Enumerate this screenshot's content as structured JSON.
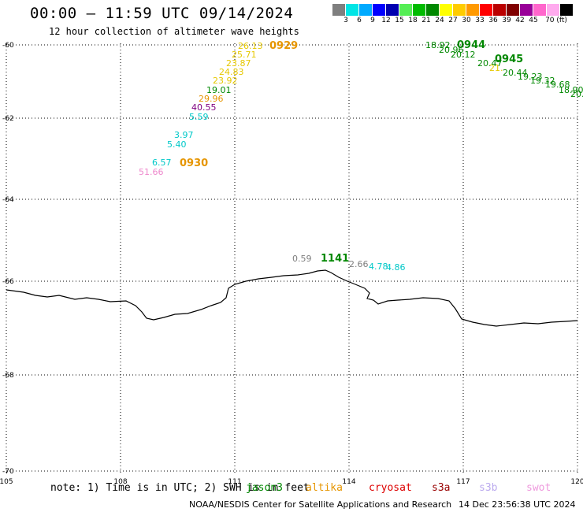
{
  "header": {
    "title": "00:00 – 11:59 UTC 09/14/2024",
    "subtitle": "12 hour collection of altimeter wave heights"
  },
  "colorbar": {
    "colors": [
      "#7f7f7f",
      "#00e5e5",
      "#00aaff",
      "#0000ff",
      "#0000b0",
      "#55ee55",
      "#00bb00",
      "#008800",
      "#ffff00",
      "#ffcc00",
      "#ff9900",
      "#ff0000",
      "#bb0000",
      "#800000",
      "#990099",
      "#ff66cc",
      "#ffaaee",
      "#000000"
    ],
    "labels": [
      "3",
      "6",
      "9",
      "12",
      "15",
      "18",
      "21",
      "24",
      "27",
      "30",
      "33",
      "36",
      "39",
      "42",
      "45",
      "70 (ft)"
    ]
  },
  "map": {
    "lon_ticks": [
      "105",
      "108",
      "111",
      "114",
      "117",
      "120"
    ],
    "lat_ticks": [
      "-60",
      "-62",
      "-64",
      "-66",
      "-68",
      "-70"
    ],
    "passes": [
      {
        "time": "0929",
        "color": "#e69500",
        "points": [
          {
            "v": "26.13",
            "c": "#e6c800"
          },
          {
            "v": "25.71",
            "c": "#e6c800"
          },
          {
            "v": "23.87",
            "c": "#e6c800"
          },
          {
            "v": "24.83",
            "c": "#e6c800"
          },
          {
            "v": "23.92",
            "c": "#e6c800"
          },
          {
            "v": "19.01",
            "c": "#008800"
          },
          {
            "v": "29.96",
            "c": "#e69500"
          },
          {
            "v": "40.55",
            "c": "#800080"
          },
          {
            "v": "5.59",
            "c": "#00c8c8"
          }
        ]
      },
      {
        "time": "0930",
        "color": "#e69500",
        "points": [
          {
            "v": "3.97",
            "c": "#00c8c8"
          },
          {
            "v": "5.40",
            "c": "#00c8c8"
          },
          {
            "v": "6.57",
            "c": "#00c8c8"
          },
          {
            "v": "51.66",
            "c": "#ee88cc"
          }
        ]
      },
      {
        "time": "0944",
        "color": "#008800",
        "points": [
          {
            "v": "18.92",
            "c": "#008800"
          },
          {
            "v": "20.96",
            "c": "#008800"
          },
          {
            "v": "20.12",
            "c": "#008800"
          }
        ]
      },
      {
        "time": "0945",
        "color": "#008800",
        "points": [
          {
            "v": "20.47",
            "c": "#008800"
          },
          {
            "v": "21.",
            "c": "#e6c800"
          },
          {
            "v": "20.44",
            "c": "#008800"
          },
          {
            "v": "19.23",
            "c": "#008800"
          },
          {
            "v": "19.32",
            "c": "#008800"
          },
          {
            "v": "19.68",
            "c": "#008800"
          },
          {
            "v": "18.90",
            "c": "#008800"
          },
          {
            "v": "20.",
            "c": "#008800"
          }
        ]
      },
      {
        "time": "1141",
        "color": "#008800",
        "points": [
          {
            "v": "0.59",
            "c": "#7f7f7f"
          },
          {
            "v": "2.66",
            "c": "#7f7f7f"
          },
          {
            "v": "4.78",
            "c": "#00c8c8"
          },
          {
            "v": "4.86",
            "c": "#00c8c8"
          }
        ]
      }
    ]
  },
  "footer": {
    "note": "note: 1) Time is in UTC; 2) SWH is in feet",
    "satellites": [
      {
        "name": "jason3",
        "color": "#008800"
      },
      {
        "name": "altika",
        "color": "#e69500"
      },
      {
        "name": "cryosat",
        "color": "#dd0000"
      },
      {
        "name": "s3a",
        "color": "#990000"
      },
      {
        "name": "s3b",
        "color": "#bbaaee"
      },
      {
        "name": "swot",
        "color": "#ee99dd"
      }
    ],
    "credit": "NOAA/NESDIS Center for Satellite Applications and Research",
    "generated": "14 Dec 23:56:38 UTC 2024"
  }
}
